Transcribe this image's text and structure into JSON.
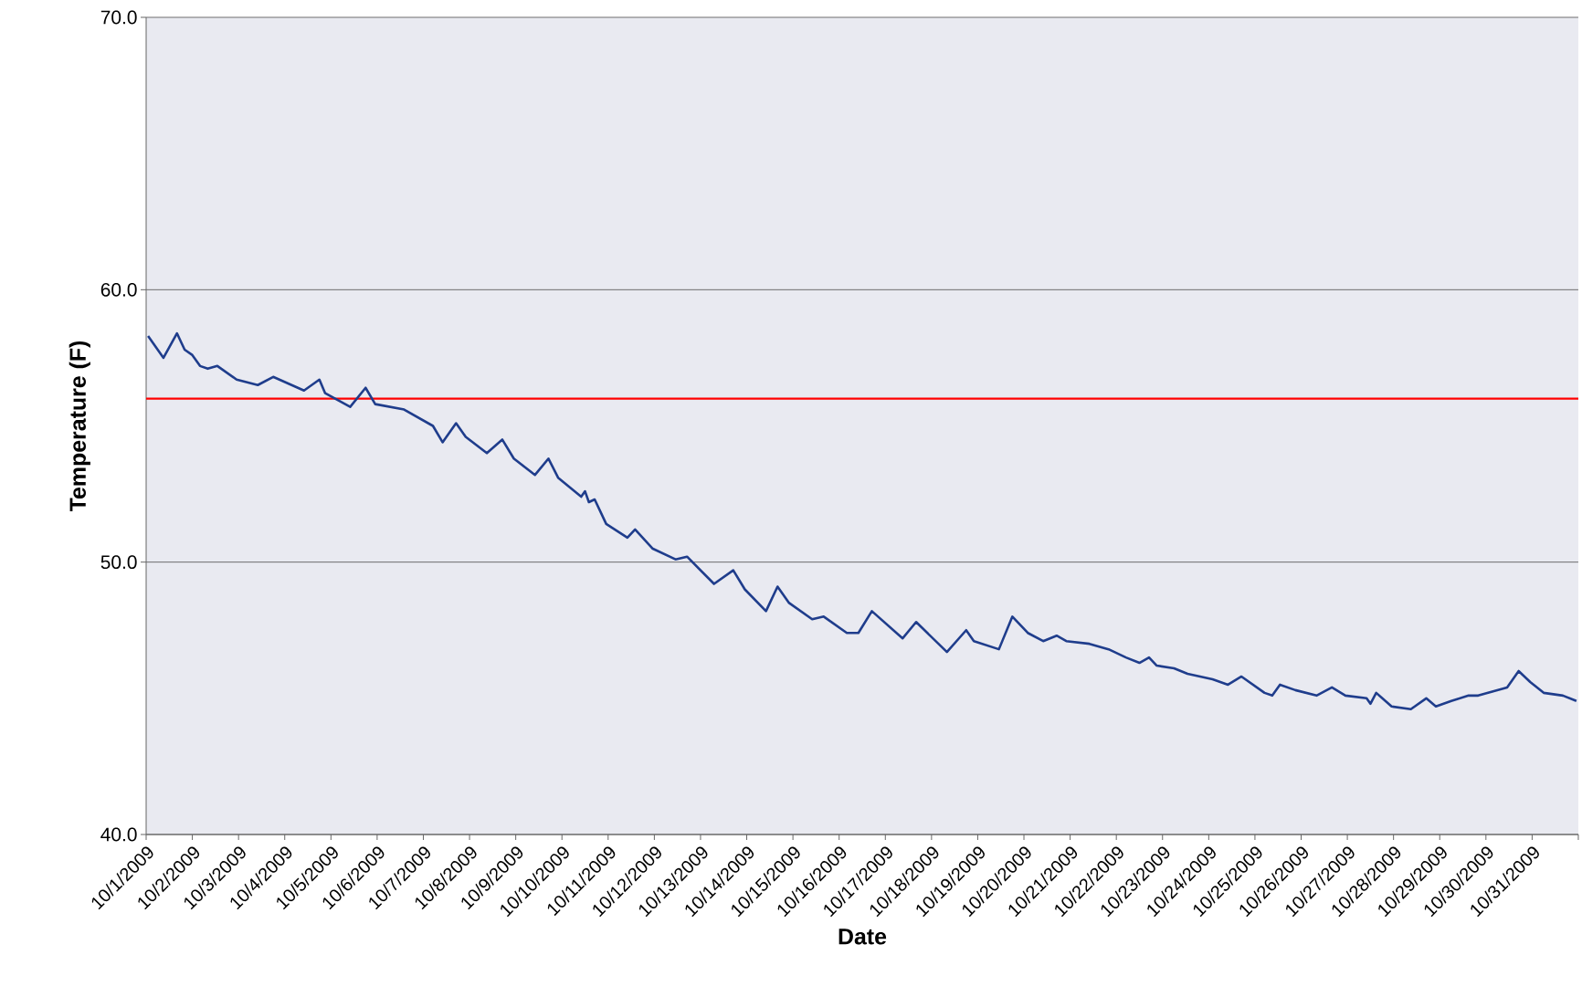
{
  "chart_data": {
    "type": "line",
    "xlabel": "Date",
    "ylabel": "Temperature (F)",
    "xlim": [
      "2009-10-01",
      "2009-11-01"
    ],
    "ylim": [
      40,
      70
    ],
    "xticks": [
      {
        "value": "2009-10-01",
        "label": "10/1/2009"
      },
      {
        "value": "2009-10-02",
        "label": "10/2/2009"
      },
      {
        "value": "2009-10-03",
        "label": "10/3/2009"
      },
      {
        "value": "2009-10-04",
        "label": "10/4/2009"
      },
      {
        "value": "2009-10-05",
        "label": "10/5/2009"
      },
      {
        "value": "2009-10-06",
        "label": "10/6/2009"
      },
      {
        "value": "2009-10-07",
        "label": "10/7/2009"
      },
      {
        "value": "2009-10-08",
        "label": "10/8/2009"
      },
      {
        "value": "2009-10-09",
        "label": "10/9/2009"
      },
      {
        "value": "2009-10-10",
        "label": "10/10/2009"
      },
      {
        "value": "2009-10-11",
        "label": "10/11/2009"
      },
      {
        "value": "2009-10-12",
        "label": "10/12/2009"
      },
      {
        "value": "2009-10-13",
        "label": "10/13/2009"
      },
      {
        "value": "2009-10-14",
        "label": "10/14/2009"
      },
      {
        "value": "2009-10-15",
        "label": "10/15/2009"
      },
      {
        "value": "2009-10-16",
        "label": "10/16/2009"
      },
      {
        "value": "2009-10-17",
        "label": "10/17/2009"
      },
      {
        "value": "2009-10-18",
        "label": "10/18/2009"
      },
      {
        "value": "2009-10-19",
        "label": "10/19/2009"
      },
      {
        "value": "2009-10-20",
        "label": "10/20/2009"
      },
      {
        "value": "2009-10-21",
        "label": "10/21/2009"
      },
      {
        "value": "2009-10-22",
        "label": "10/22/2009"
      },
      {
        "value": "2009-10-23",
        "label": "10/23/2009"
      },
      {
        "value": "2009-10-24",
        "label": "10/24/2009"
      },
      {
        "value": "2009-10-25",
        "label": "10/25/2009"
      },
      {
        "value": "2009-10-26",
        "label": "10/26/2009"
      },
      {
        "value": "2009-10-27",
        "label": "10/27/2009"
      },
      {
        "value": "2009-10-28",
        "label": "10/28/2009"
      },
      {
        "value": "2009-10-29",
        "label": "10/29/2009"
      },
      {
        "value": "2009-10-30",
        "label": "10/30/2009"
      },
      {
        "value": "2009-10-31",
        "label": "10/31/2009"
      },
      {
        "value": "2009-11-01",
        "label": null
      }
    ],
    "yticks": [
      {
        "value": 40,
        "label": "40.0"
      },
      {
        "value": 50,
        "label": "50.0"
      },
      {
        "value": 60,
        "label": "60.0"
      },
      {
        "value": 70,
        "label": "70.0"
      }
    ],
    "grid": "y",
    "marker": "none",
    "line_style": "solid",
    "ref_lines": [
      {
        "axis": "y",
        "value": 56.0,
        "color": "#ff0000"
      }
    ],
    "series": [
      {
        "color": "#1f3d8c",
        "x": [
          "2009-10-01T01:00",
          "2009-10-01T09:00",
          "2009-10-01T16:00",
          "2009-10-01T20:00",
          "2009-10-02T00:00",
          "2009-10-02T04:00",
          "2009-10-02T08:00",
          "2009-10-02T13:00",
          "2009-10-02T23:00",
          "2009-10-03T10:00",
          "2009-10-03T18:00",
          "2009-10-04T10:00",
          "2009-10-04T18:00",
          "2009-10-04T21:00",
          "2009-10-05T10:00",
          "2009-10-05T18:00",
          "2009-10-05T23:00",
          "2009-10-06T14:00",
          "2009-10-07T05:00",
          "2009-10-07T10:00",
          "2009-10-07T17:00",
          "2009-10-07T22:00",
          "2009-10-08T09:00",
          "2009-10-08T17:00",
          "2009-10-08T23:00",
          "2009-10-09T10:00",
          "2009-10-09T17:00",
          "2009-10-09T22:00",
          "2009-10-10T10:00",
          "2009-10-10T12:00",
          "2009-10-10T14:00",
          "2009-10-10T17:00",
          "2009-10-10T23:00",
          "2009-10-11T10:00",
          "2009-10-11T14:00",
          "2009-10-11T23:00",
          "2009-10-12T11:00",
          "2009-10-12T17:00",
          "2009-10-13T07:00",
          "2009-10-13T17:00",
          "2009-10-13T23:00",
          "2009-10-14T10:00",
          "2009-10-14T16:00",
          "2009-10-14T22:00",
          "2009-10-15T10:00",
          "2009-10-15T16:00",
          "2009-10-16T04:00",
          "2009-10-16T10:00",
          "2009-10-16T17:00",
          "2009-10-17T09:00",
          "2009-10-17T16:00",
          "2009-10-18T08:00",
          "2009-10-18T18:00",
          "2009-10-18T22:00",
          "2009-10-19T11:00",
          "2009-10-19T18:00",
          "2009-10-20T02:00",
          "2009-10-20T10:00",
          "2009-10-20T17:00",
          "2009-10-20T22:00",
          "2009-10-21T10:00",
          "2009-10-21T20:00",
          "2009-10-22T05:00",
          "2009-10-22T12:00",
          "2009-10-22T17:00",
          "2009-10-22T21:00",
          "2009-10-23T06:00",
          "2009-10-23T13:00",
          "2009-10-24T02:00",
          "2009-10-24T10:00",
          "2009-10-24T17:00",
          "2009-10-25T05:00",
          "2009-10-25T09:00",
          "2009-10-25T13:00",
          "2009-10-25T21:00",
          "2009-10-26T08:00",
          "2009-10-26T16:00",
          "2009-10-26T23:00",
          "2009-10-27T10:00",
          "2009-10-27T12:00",
          "2009-10-27T15:00",
          "2009-10-27T23:00",
          "2009-10-28T09:00",
          "2009-10-28T17:00",
          "2009-10-28T22:00",
          "2009-10-29T06:00",
          "2009-10-29T15:00",
          "2009-10-29T20:00",
          "2009-10-30T11:00",
          "2009-10-30T17:00",
          "2009-10-30T23:00",
          "2009-10-31T06:00",
          "2009-10-31T16:00",
          "2009-10-31T23:00"
        ],
        "values": [
          58.3,
          57.5,
          58.4,
          57.8,
          57.6,
          57.2,
          57.1,
          57.2,
          56.7,
          56.5,
          56.8,
          56.3,
          56.7,
          56.2,
          55.7,
          56.4,
          55.8,
          55.6,
          55.0,
          54.4,
          55.1,
          54.6,
          54.0,
          54.5,
          53.8,
          53.2,
          53.8,
          53.1,
          52.4,
          52.6,
          52.2,
          52.3,
          51.4,
          50.9,
          51.2,
          50.5,
          50.1,
          50.2,
          49.2,
          49.7,
          49.0,
          48.2,
          49.1,
          48.5,
          47.9,
          48.0,
          47.4,
          47.4,
          48.2,
          47.2,
          47.8,
          46.7,
          47.5,
          47.1,
          46.8,
          48.0,
          47.4,
          47.1,
          47.3,
          47.1,
          47.0,
          46.8,
          46.5,
          46.3,
          46.5,
          46.2,
          46.1,
          45.9,
          45.7,
          45.5,
          45.8,
          45.2,
          45.1,
          45.5,
          45.3,
          45.1,
          45.4,
          45.1,
          45.0,
          44.8,
          45.2,
          44.7,
          44.6,
          45.0,
          44.7,
          44.9,
          45.1,
          45.1,
          45.4,
          46.0,
          45.6,
          45.2,
          45.1,
          44.9
        ]
      }
    ]
  }
}
